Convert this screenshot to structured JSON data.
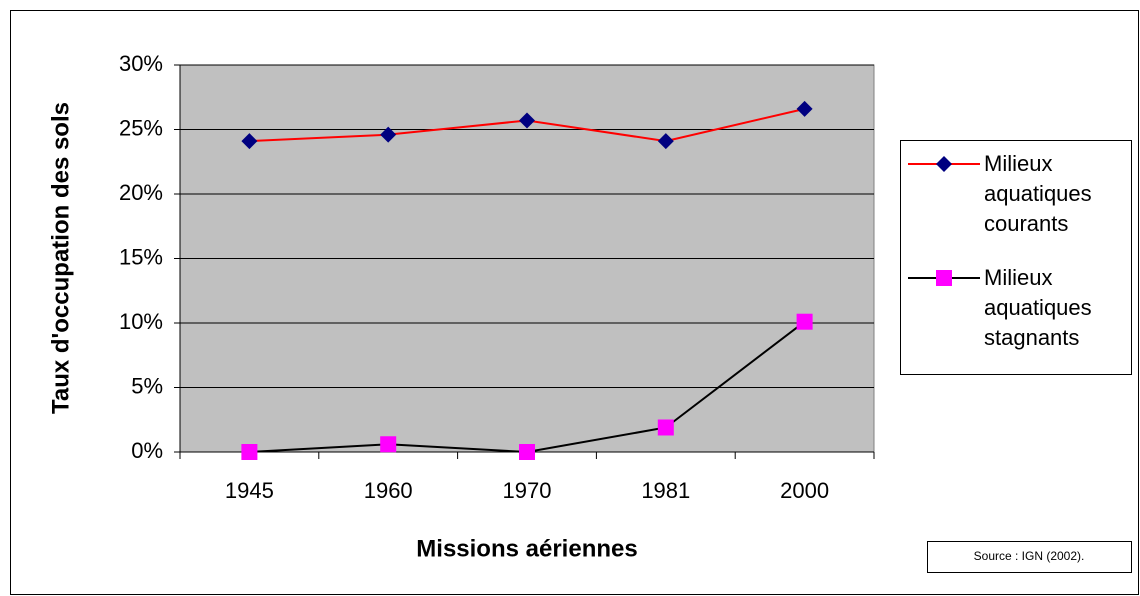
{
  "chart_data": {
    "type": "line",
    "x_label": "Missions aériennes",
    "y_label": "Taux d'occupation des sols",
    "categories": [
      "1945",
      "1960",
      "1970",
      "1981",
      "2000"
    ],
    "series": [
      {
        "name": "Milieux aquatiques courants",
        "color": "#ff0000",
        "marker": "diamond",
        "marker_color": "#000080",
        "values": [
          24.1,
          24.6,
          25.7,
          24.1,
          26.6
        ]
      },
      {
        "name": "Milieux aquatiques stagnants",
        "color": "#000000",
        "marker": "square",
        "marker_color": "#ff00ff",
        "values": [
          0,
          0.6,
          0,
          1.9,
          10.1
        ]
      }
    ],
    "ylim": [
      0,
      30
    ],
    "yticks": [
      {
        "value": 0,
        "label": "0%"
      },
      {
        "value": 5,
        "label": "5%"
      },
      {
        "value": 10,
        "label": "10%"
      },
      {
        "value": 15,
        "label": "15%"
      },
      {
        "value": 20,
        "label": "20%"
      },
      {
        "value": 25,
        "label": "25%"
      },
      {
        "value": 30,
        "label": "30%"
      }
    ],
    "grid": true,
    "legend": "right",
    "source": "Source : IGN (2002)."
  }
}
